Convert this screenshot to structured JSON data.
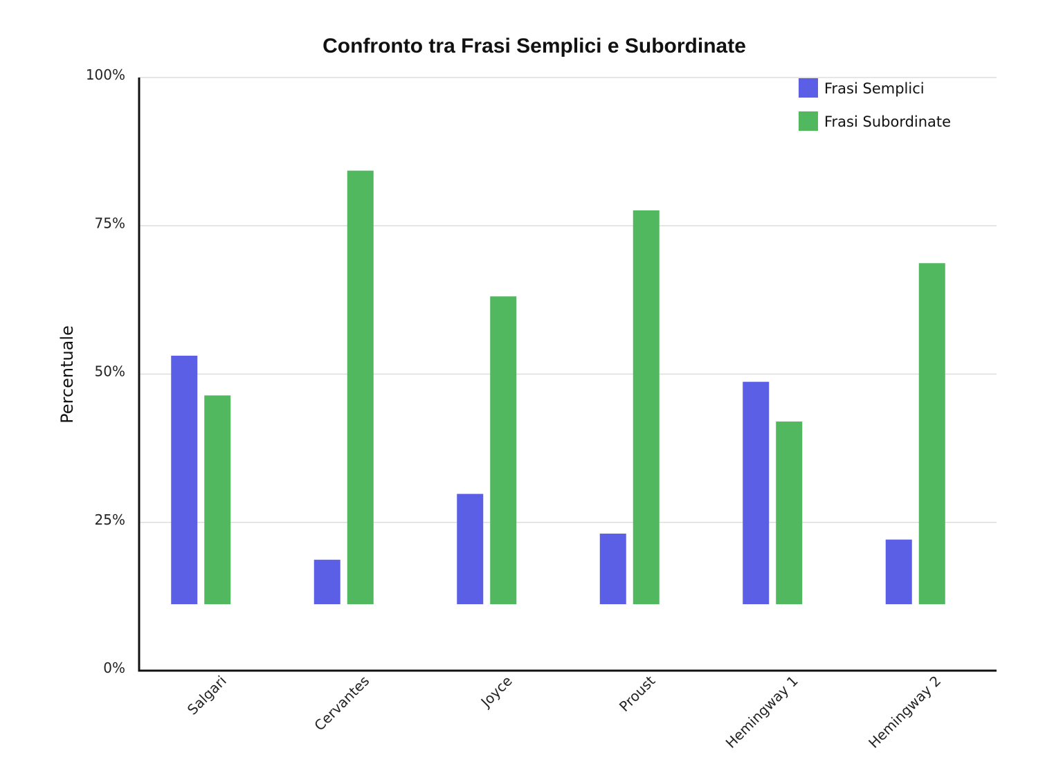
{
  "chart_data": {
    "type": "bar",
    "title": "Confronto tra Frasi Semplici e Subordinate",
    "xlabel": "",
    "ylabel": "Percentuale",
    "ylim": [
      0,
      100
    ],
    "yticks": [
      "0%",
      "25%",
      "50%",
      "75%",
      "100%"
    ],
    "ytick_values": [
      0,
      25,
      50,
      75,
      100
    ],
    "bar_baseline": 11.2,
    "categories": [
      "Salgari",
      "Cervantes",
      "Joyce",
      "Proust",
      "Hemingway 1",
      "Hemingway 2"
    ],
    "series": [
      {
        "name": "Frasi Semplici",
        "color": "#5a5fe6",
        "values": [
          53.1,
          18.7,
          29.8,
          23.1,
          48.7,
          22.1
        ]
      },
      {
        "name": "Frasi Subordinate",
        "color": "#52b85f",
        "values": [
          46.4,
          84.3,
          63.1,
          77.6,
          42.0,
          68.7
        ]
      }
    ],
    "grid": true,
    "legend_position": "top-right"
  }
}
